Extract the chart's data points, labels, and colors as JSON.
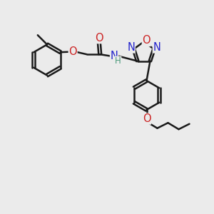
{
  "background_color": "#ebebeb",
  "bond_color": "#1a1a1a",
  "N_color": "#2222cc",
  "O_color": "#cc2222",
  "bond_width": 1.8,
  "dbo": 0.07,
  "fs": 10.5,
  "fss": 8.5,
  "figsize": [
    3.0,
    3.0
  ],
  "dpi": 100,
  "xlim": [
    0,
    10
  ],
  "ylim": [
    0,
    10
  ]
}
